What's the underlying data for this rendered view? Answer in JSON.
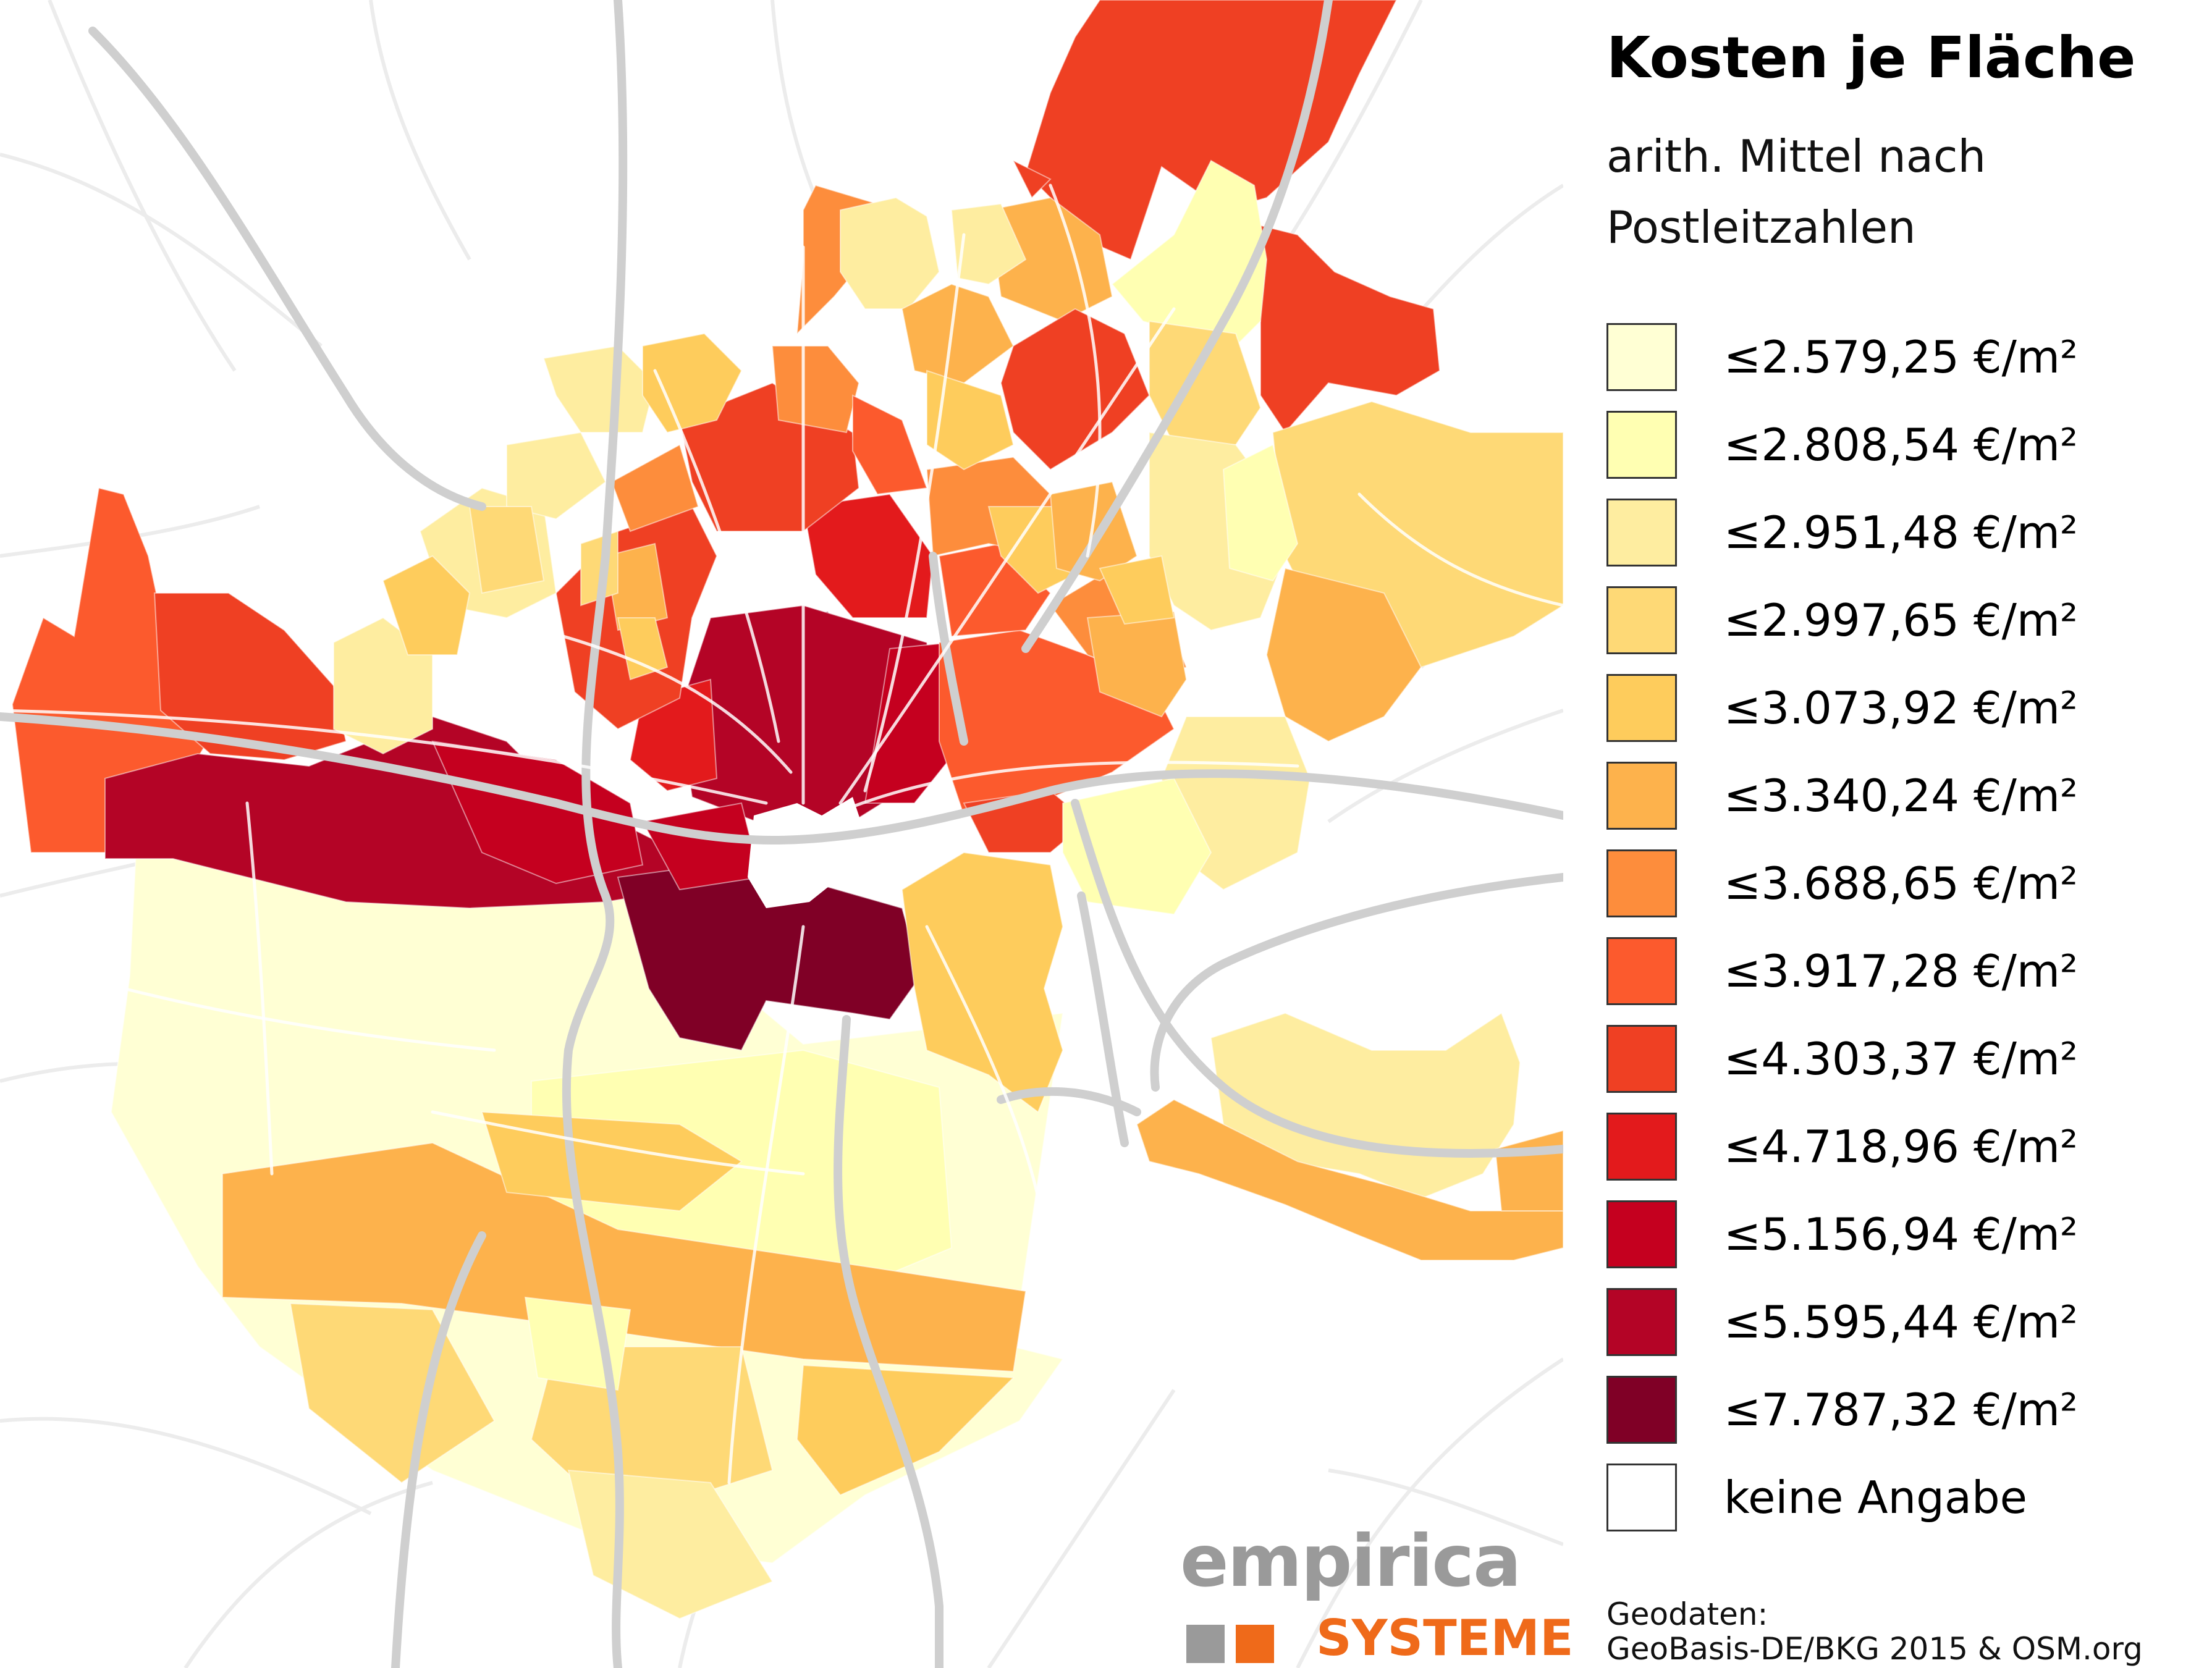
{
  "title": "Kosten je Fläche",
  "subtitle": "arith. Mittel nach Postleitzahlen",
  "legend": [
    {
      "label": "≤2.579,25 €/m²",
      "color": "#ffffd4"
    },
    {
      "label": "≤2.808,54 €/m²",
      "color": "#ffffb2"
    },
    {
      "label": "≤2.951,48 €/m²",
      "color": "#feeda0"
    },
    {
      "label": "≤2.997,65 €/m²",
      "color": "#fed976"
    },
    {
      "label": "≤3.073,92 €/m²",
      "color": "#fecc5c"
    },
    {
      "label": "≤3.340,24 €/m²",
      "color": "#fdb24c"
    },
    {
      "label": "≤3.688,65 €/m²",
      "color": "#fd8d3c"
    },
    {
      "label": "≤3.917,28 €/m²",
      "color": "#fc5a2d"
    },
    {
      "label": "≤4.303,37 €/m²",
      "color": "#ef4023"
    },
    {
      "label": "≤4.718,96 €/m²",
      "color": "#e31a1c"
    },
    {
      "label": "≤5.156,94 €/m²",
      "color": "#c5001f"
    },
    {
      "label": "≤5.595,44 €/m²",
      "color": "#b40426"
    },
    {
      "label": "≤7.787,32 €/m²",
      "color": "#800026"
    },
    {
      "label": "keine Angabe",
      "color": "#ffffff"
    }
  ],
  "credit": {
    "line1": "Geodaten:",
    "line2": "GeoBasis-DE/BKG 2015 & OSM.org"
  },
  "brand": {
    "name": "empirica",
    "sub": "SYSTEME",
    "name_color": "#9a9a9a",
    "sub_color": "#ef6a1a"
  }
}
